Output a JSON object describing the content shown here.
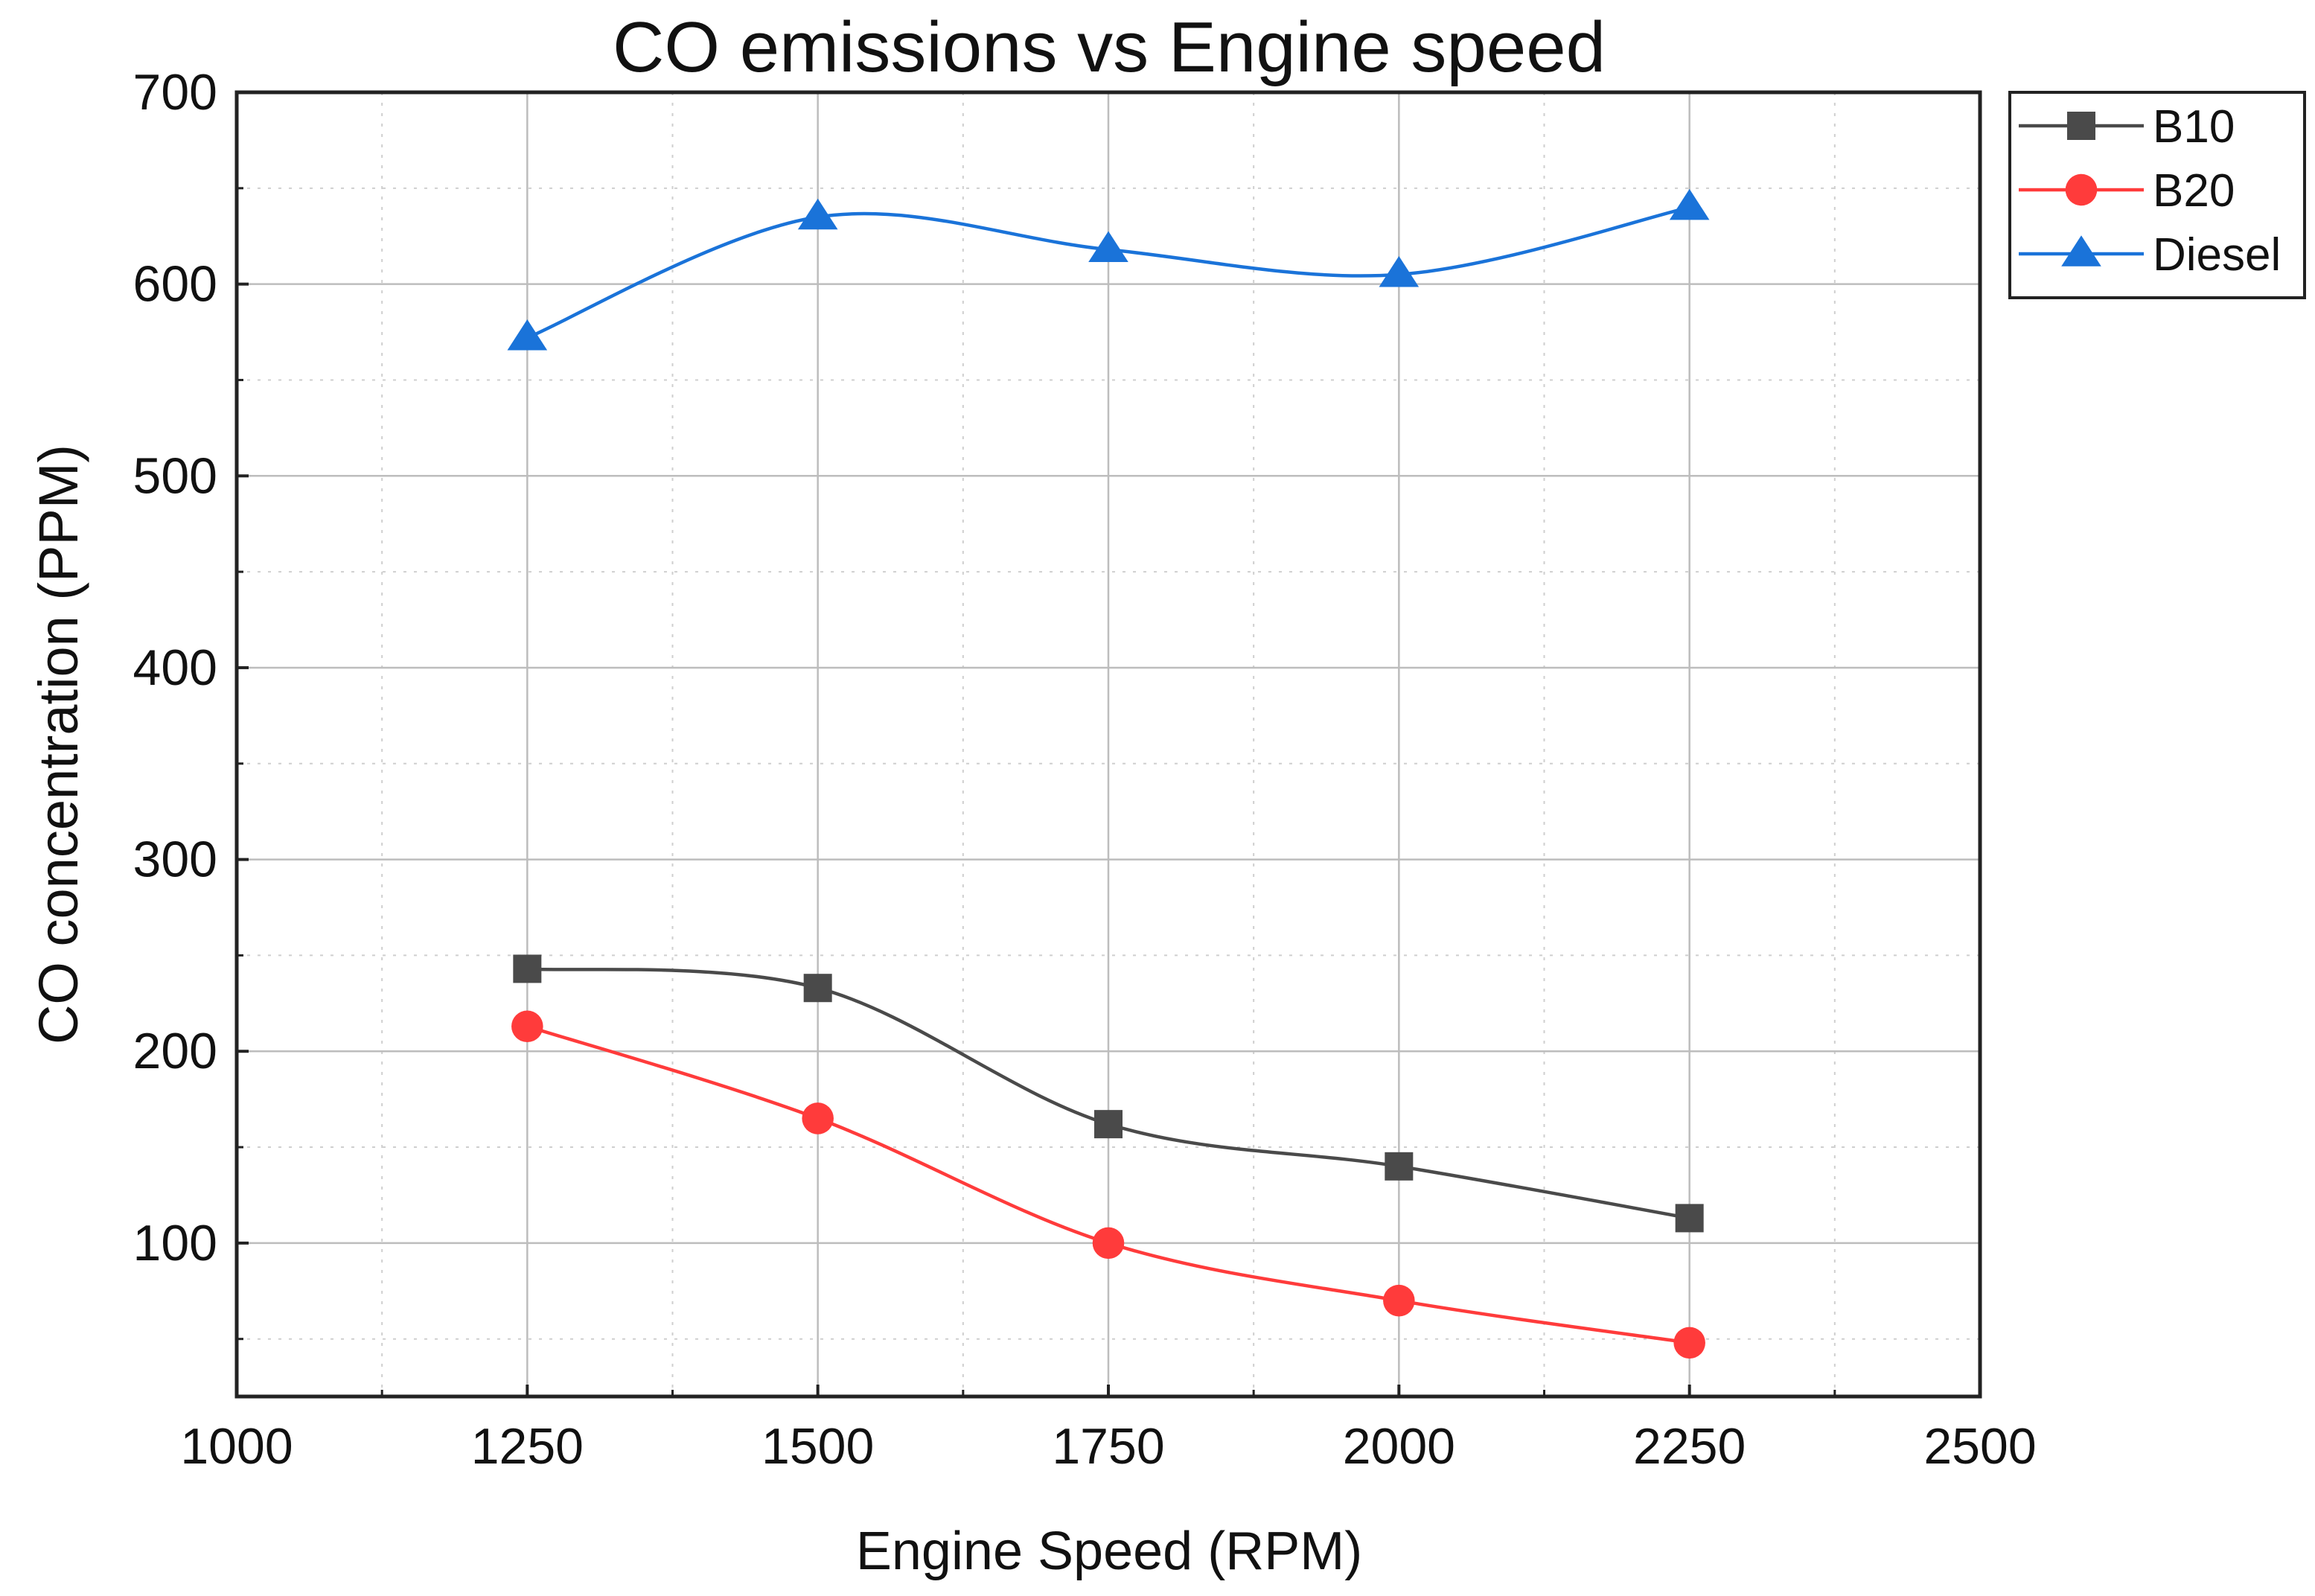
{
  "chart_data": {
    "type": "line",
    "title": "CO emissions vs Engine speed",
    "xlabel": "Engine Speed (RPM)",
    "ylabel": "CO concentration (PPM)",
    "xlim": [
      1000,
      2500
    ],
    "ylim": [
      20,
      700
    ],
    "x_ticks": [
      1000,
      1250,
      1500,
      1750,
      2000,
      2250,
      2500
    ],
    "y_ticks": [
      100,
      200,
      300,
      400,
      500,
      600,
      700
    ],
    "grid": true,
    "legend_position": "outside-top-right",
    "x": [
      1250,
      1500,
      1750,
      2000,
      2250
    ],
    "series": [
      {
        "name": "B10",
        "values": [
          243,
          233,
          162,
          140,
          113
        ],
        "color": "#4a4a4a",
        "marker": "square"
      },
      {
        "name": "B20",
        "values": [
          213,
          165,
          100,
          70,
          48
        ],
        "color": "#ff3b3b",
        "marker": "circle"
      },
      {
        "name": "Diesel",
        "values": [
          572,
          635,
          618,
          605,
          640
        ],
        "color": "#1a73d9",
        "marker": "triangle"
      }
    ]
  }
}
